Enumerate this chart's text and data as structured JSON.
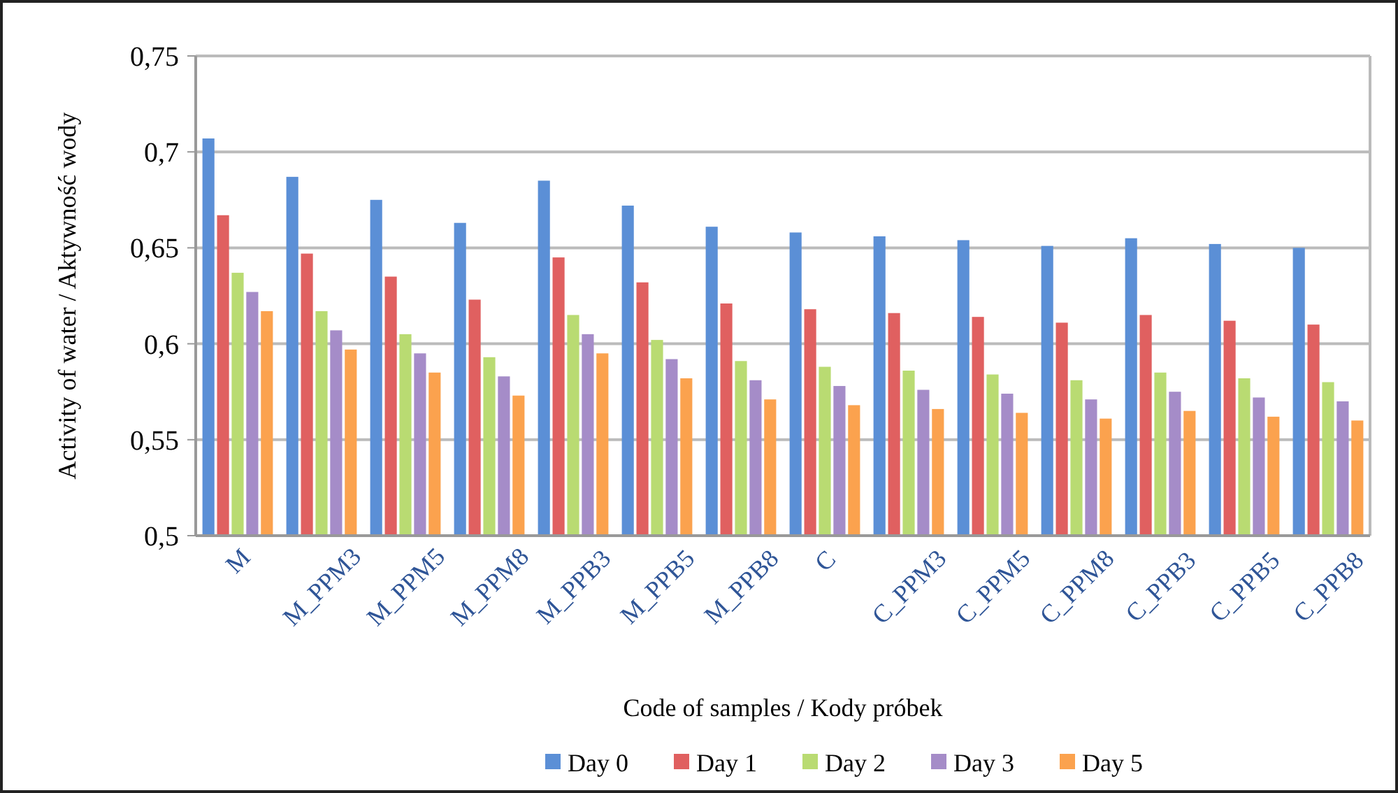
{
  "chart_data": {
    "type": "bar",
    "xlabel": "Code of samples / Kody próbek",
    "ylabel": "Activity of water / Aktywność wody",
    "categories": [
      "M",
      "M_PPM3",
      "M_PPM5",
      "M_PPM8",
      "M_PPB3",
      "M_PPB5",
      "M_PPB8",
      "C",
      "C_PPM3",
      "C_PPM5",
      "C_PPM8",
      "C_PPB3",
      "C_PPB5",
      "C_PPB8"
    ],
    "series": [
      {
        "name": "Day 0",
        "color": "#5b8fd6",
        "values": [
          0.707,
          0.687,
          0.675,
          0.663,
          0.685,
          0.672,
          0.661,
          0.658,
          0.656,
          0.654,
          0.651,
          0.655,
          0.652,
          0.65
        ]
      },
      {
        "name": "Day 1",
        "color": "#e06060",
        "values": [
          0.667,
          0.647,
          0.635,
          0.623,
          0.645,
          0.632,
          0.621,
          0.618,
          0.616,
          0.614,
          0.611,
          0.615,
          0.612,
          0.61
        ]
      },
      {
        "name": "Day 2",
        "color": "#b9db72",
        "values": [
          0.637,
          0.617,
          0.605,
          0.593,
          0.615,
          0.602,
          0.591,
          0.588,
          0.586,
          0.584,
          0.581,
          0.585,
          0.582,
          0.58
        ]
      },
      {
        "name": "Day 3",
        "color": "#a58cc8",
        "values": [
          0.627,
          0.607,
          0.595,
          0.583,
          0.605,
          0.592,
          0.581,
          0.578,
          0.576,
          0.574,
          0.571,
          0.575,
          0.572,
          0.57
        ]
      },
      {
        "name": "Day 5",
        "color": "#fba24e",
        "values": [
          0.617,
          0.597,
          0.585,
          0.573,
          0.595,
          0.582,
          0.571,
          0.568,
          0.566,
          0.564,
          0.561,
          0.565,
          0.562,
          0.56
        ]
      }
    ],
    "ylim": [
      0.5,
      0.75
    ],
    "yticks": [
      {
        "value": 0.5,
        "label": "0,5"
      },
      {
        "value": 0.55,
        "label": "0,55"
      },
      {
        "value": 0.6,
        "label": "0,6"
      },
      {
        "value": 0.65,
        "label": "0,65"
      },
      {
        "value": 0.7,
        "label": "0,7"
      },
      {
        "value": 0.75,
        "label": "0,75"
      }
    ],
    "grid": "y",
    "legend": "bottom"
  }
}
